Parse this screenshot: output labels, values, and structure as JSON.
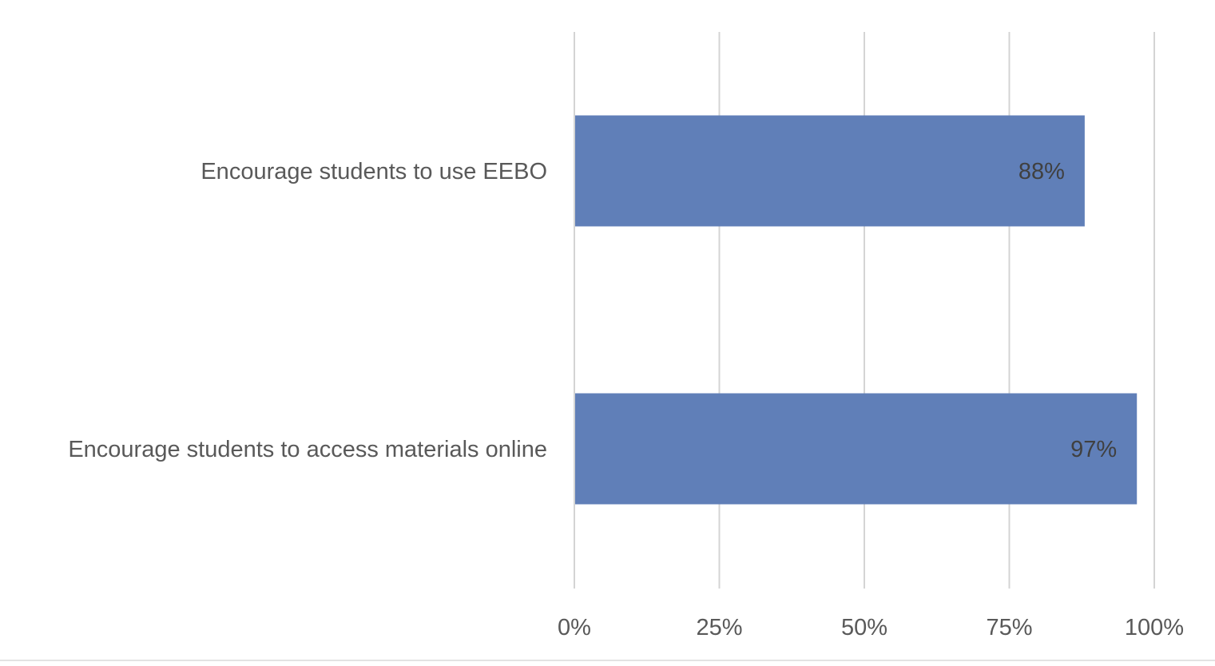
{
  "chart_data": {
    "type": "bar",
    "orientation": "horizontal",
    "categories": [
      "Encourage students to use EEBO",
      "Encourage students to access materials online"
    ],
    "values": [
      88,
      97
    ],
    "data_labels": [
      "88%",
      "97%"
    ],
    "xlim": [
      0,
      100
    ],
    "x_ticks": [
      0,
      25,
      50,
      75,
      100
    ],
    "x_tick_labels": [
      "0%",
      "25%",
      "50%",
      "75%",
      "100%"
    ],
    "grid": true,
    "legend": "none",
    "colors": {
      "bar": "#607fb8",
      "grid": "#d4d4d4",
      "text": "#595959",
      "data_label": "#404040"
    }
  }
}
